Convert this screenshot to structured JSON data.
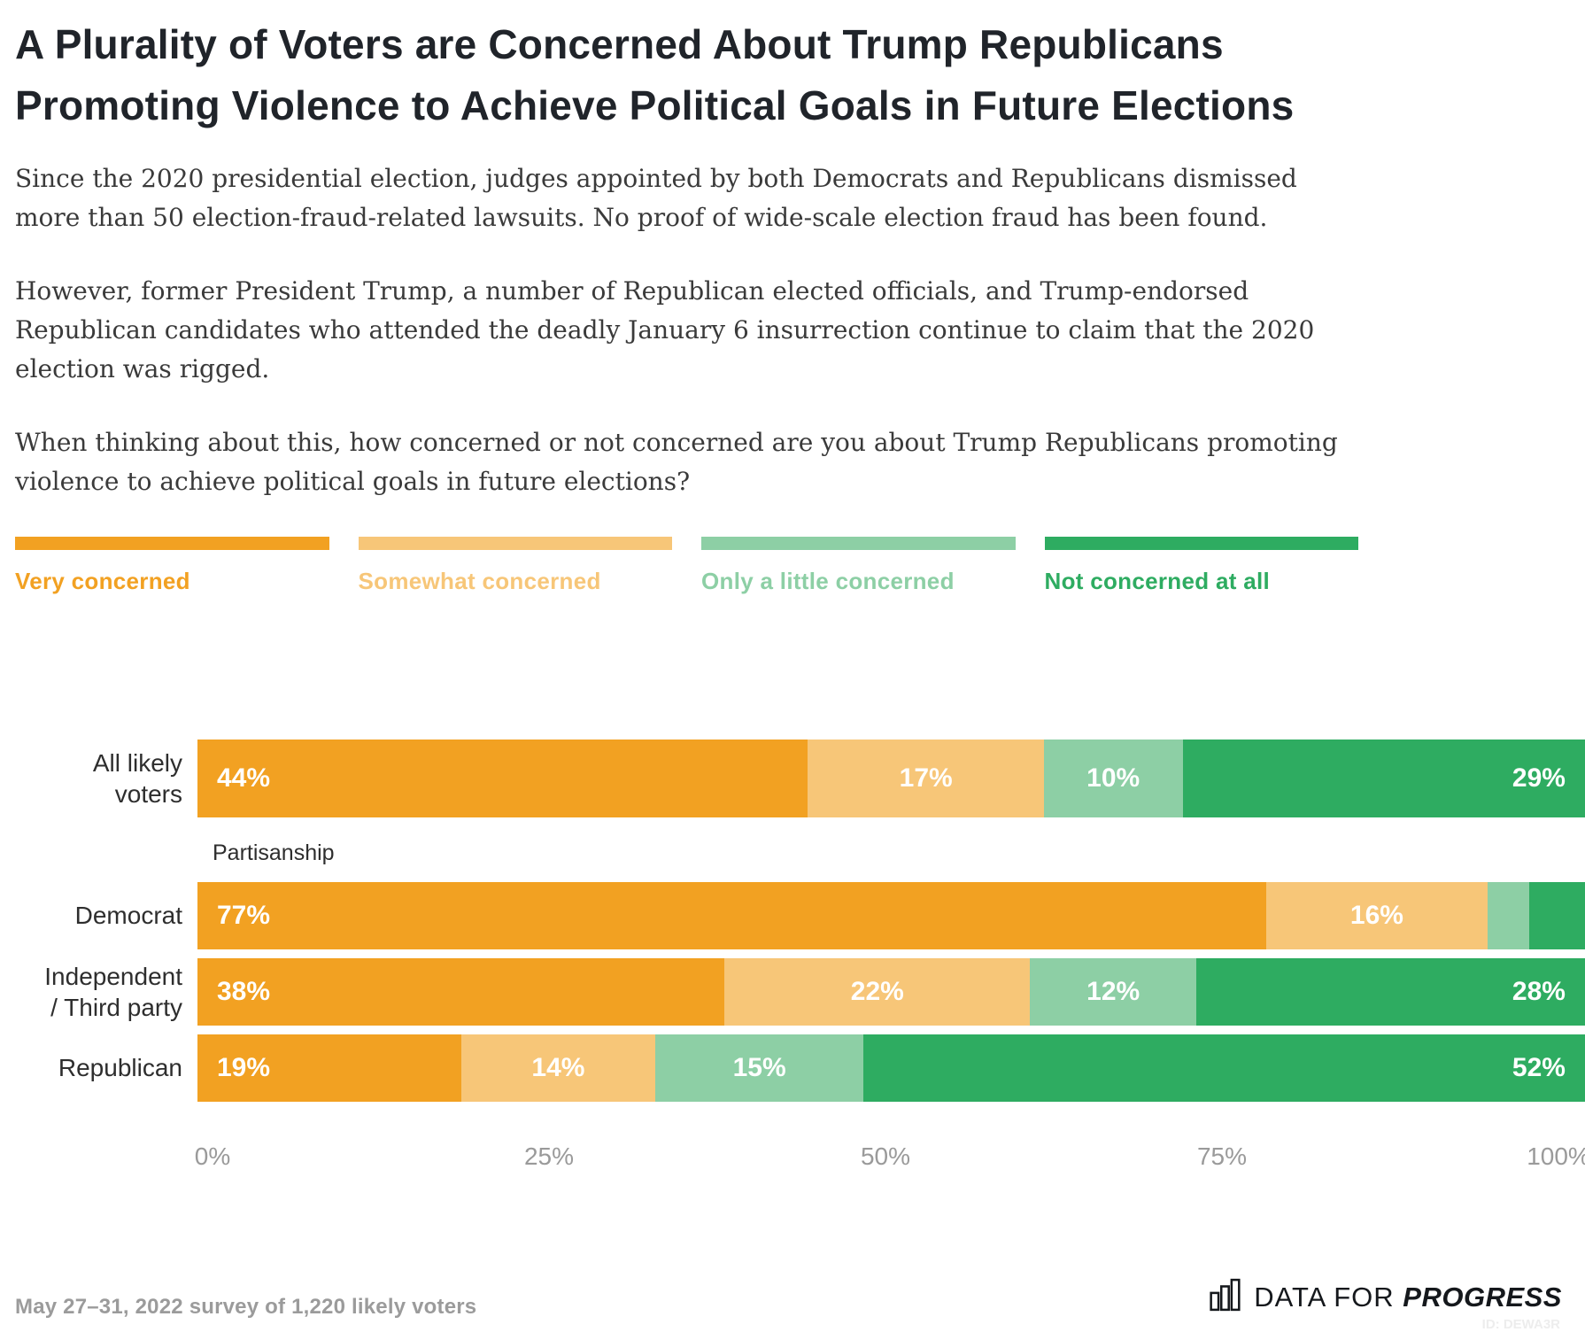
{
  "title": "A Plurality of Voters are Concerned About Trump Republicans Promoting Violence to Achieve Political Goals in Future Elections",
  "paragraphs": {
    "p1": "Since the 2020 presidential election, judges appointed by both Democrats and Republicans dismissed more than 50 election-fraud-related lawsuits. No proof of wide-scale election fraud has been found.",
    "p2": "However, former President Trump, a number of Republican elected officials, and Trump-endorsed Republican candidates who attended the deadly January 6 insurrection continue to claim that the 2020 election was rigged.",
    "p3": "When thinking about this, how concerned or not concerned are you about Trump Republicans promoting violence to achieve political goals in future elections?"
  },
  "colors": {
    "very_concerned": "#F2A122",
    "somewhat_concerned": "#F7C678",
    "little_concerned": "#8DCFA5",
    "not_concerned": "#2EAC61"
  },
  "chart_data": {
    "type": "bar",
    "stacked": true,
    "orientation": "horizontal",
    "xlim": [
      0,
      100
    ],
    "x_ticks": [
      "0%",
      "25%",
      "50%",
      "75%",
      "100%"
    ],
    "grid": false,
    "legend_position": "top",
    "label_format": "{v}%",
    "min_label_value": 10,
    "section_label": "Partisanship",
    "section_label_after_row": 0,
    "categories": [
      "All likely voters",
      "Democrat",
      "Independent / Third party",
      "Republican"
    ],
    "category_lines": [
      "All likely\nvoters",
      "Democrat",
      "Independent\n/ Third party",
      "Republican"
    ],
    "series": [
      {
        "name": "Very concerned",
        "color": "#F2A122",
        "values": [
          44,
          77,
          38,
          19
        ]
      },
      {
        "name": "Somewhat concerned",
        "color": "#F7C678",
        "values": [
          17,
          16,
          22,
          14
        ]
      },
      {
        "name": "Only a little concerned",
        "color": "#8DCFA5",
        "values": [
          10,
          3,
          12,
          15
        ]
      },
      {
        "name": "Not concerned at all",
        "color": "#2EAC61",
        "values": [
          29,
          4,
          28,
          52
        ]
      }
    ]
  },
  "footer": {
    "note": "May 27–31, 2022 survey of 1,220 likely voters",
    "logo_prefix": "DATA FOR",
    "logo_bold": "PROGRESS",
    "watermark": "ID: DEWA3R"
  }
}
